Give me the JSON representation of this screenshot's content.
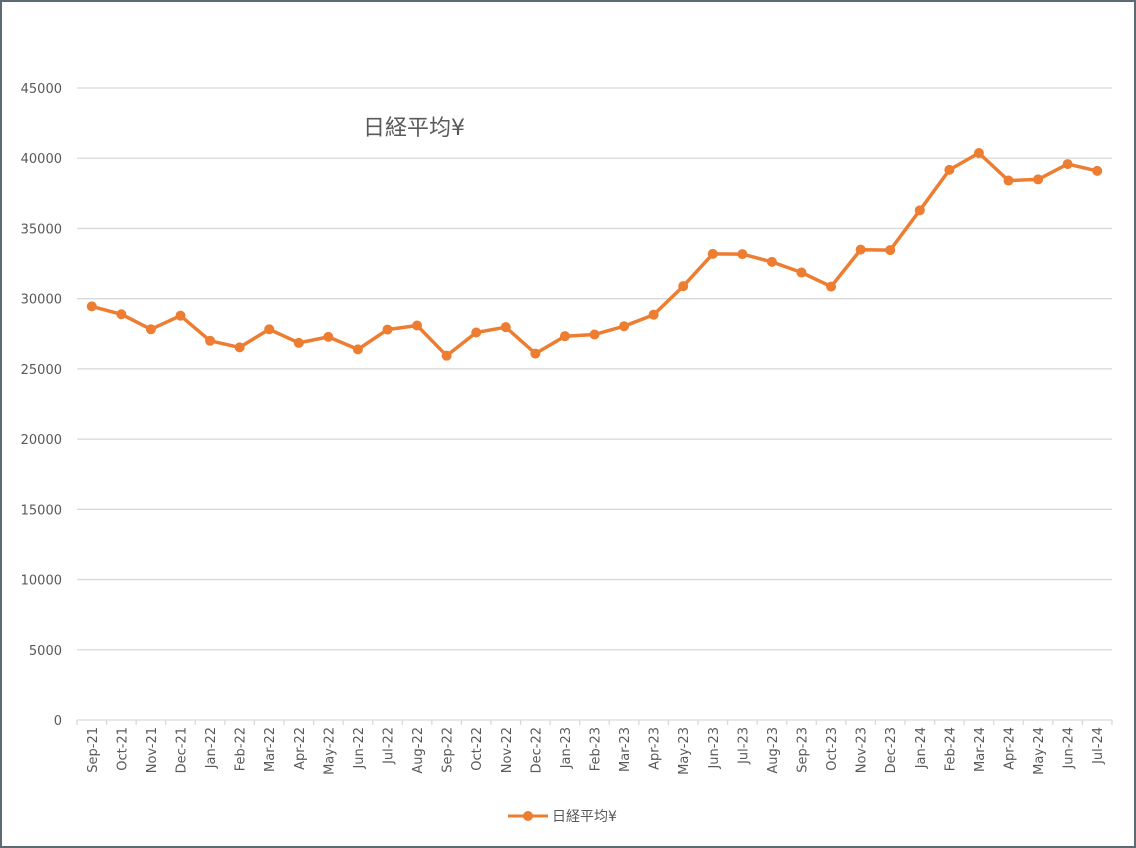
{
  "chart_data": {
    "type": "line",
    "title": "日経平均¥",
    "xlabel": "",
    "ylabel": "",
    "ylim": [
      0,
      45000
    ],
    "yticks": [
      0,
      5000,
      10000,
      15000,
      20000,
      25000,
      30000,
      35000,
      40000,
      45000
    ],
    "grid": true,
    "legend_position": "bottom",
    "categories": [
      "Sep-21",
      "Oct-21",
      "Nov-21",
      "Dec-21",
      "Jan-22",
      "Feb-22",
      "Mar-22",
      "Apr-22",
      "May-22",
      "Jun-22",
      "Jul-22",
      "Aug-22",
      "Sep-22",
      "Oct-22",
      "Nov-22",
      "Dec-22",
      "Jan-23",
      "Feb-23",
      "Mar-23",
      "Apr-23",
      "May-23",
      "Jun-23",
      "Jul-23",
      "Aug-23",
      "Sep-23",
      "Oct-23",
      "Nov-23",
      "Dec-23",
      "Jan-24",
      "Feb-24",
      "Mar-24",
      "Apr-24",
      "May-24",
      "Jun-24",
      "Jul-24"
    ],
    "series": [
      {
        "name": "日経平均¥",
        "color": "#ED7D31",
        "values": [
          29450,
          28890,
          27820,
          28790,
          27000,
          26530,
          27820,
          26850,
          27280,
          26390,
          27800,
          28090,
          25940,
          27590,
          27970,
          26090,
          27330,
          27450,
          28040,
          28860,
          30890,
          33190,
          33170,
          32620,
          31860,
          30860,
          33490,
          33460,
          36290,
          39170,
          40370,
          38410,
          38490,
          39580,
          39100
        ]
      }
    ]
  },
  "legend": {
    "label": "日経平均¥"
  },
  "colors": {
    "line": "#ED7D31",
    "grid": "#d9d9d9",
    "text": "#595959",
    "frame": "#5b6b76"
  }
}
